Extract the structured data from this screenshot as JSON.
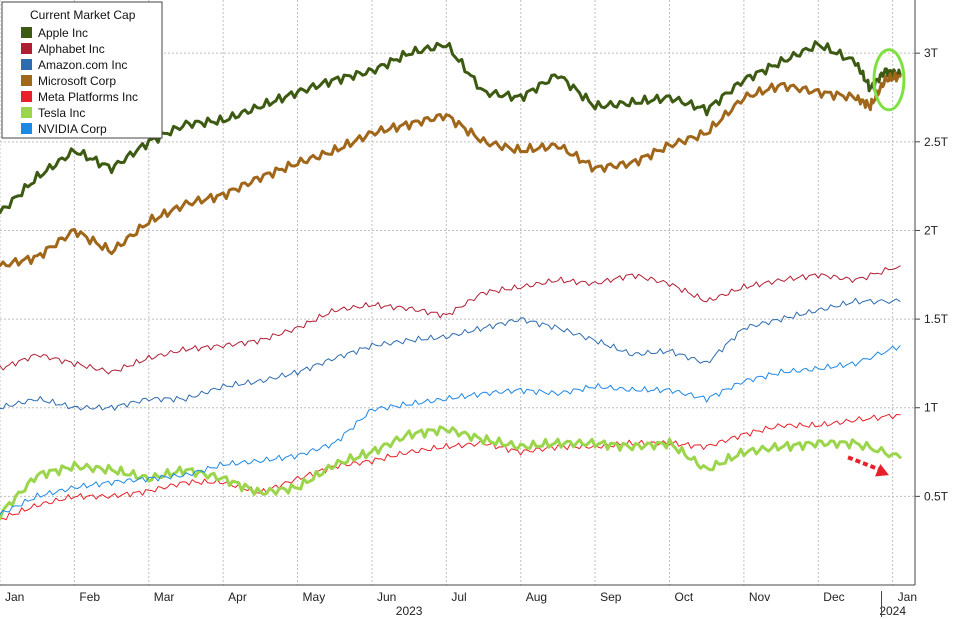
{
  "chart_data": {
    "type": "line",
    "legend_title": "Current Market Cap",
    "legend_position": "top-left",
    "grid": true,
    "y_axis_side": "right",
    "ylim": [
      0,
      3.3
    ],
    "y_ticks": [
      {
        "value": 0.5,
        "label": "0.5T"
      },
      {
        "value": 1.0,
        "label": "1T"
      },
      {
        "value": 1.5,
        "label": "1.5T"
      },
      {
        "value": 2.0,
        "label": "2T"
      },
      {
        "value": 2.5,
        "label": "2.5T"
      },
      {
        "value": 3.0,
        "label": "3T"
      }
    ],
    "xlim": [
      0,
      12.3
    ],
    "x_ticks": [
      {
        "value": 0,
        "label": "Jan"
      },
      {
        "value": 1,
        "label": "Feb"
      },
      {
        "value": 2,
        "label": "Mar"
      },
      {
        "value": 3,
        "label": "Apr"
      },
      {
        "value": 4,
        "label": "May"
      },
      {
        "value": 5,
        "label": "Jun"
      },
      {
        "value": 6,
        "label": "Jul"
      },
      {
        "value": 7,
        "label": "Aug"
      },
      {
        "value": 8,
        "label": "Sep"
      },
      {
        "value": 9,
        "label": "Oct"
      },
      {
        "value": 10,
        "label": "Nov"
      },
      {
        "value": 11,
        "label": "Dec"
      },
      {
        "value": 12,
        "label": "Jan"
      }
    ],
    "x_unit": "months since start of 2023",
    "year_labels": [
      {
        "value": 5.5,
        "label": "2023"
      },
      {
        "value": 12.0,
        "label": "2024"
      }
    ],
    "annotations": [
      {
        "type": "ellipse",
        "around_series": "Microsoft Corp",
        "x": 11.95,
        "y": 2.85,
        "color": "#7FE041"
      },
      {
        "type": "arrow",
        "near_series": "Tesla Inc",
        "from": [
          11.4,
          0.72
        ],
        "to": [
          11.95,
          0.62
        ],
        "color": "#E8202A"
      }
    ],
    "series": [
      {
        "name": "Apple Inc",
        "color": "#3D5A12",
        "width": 3,
        "x": [
          0,
          0.5,
          1,
          1.5,
          2,
          2.5,
          3,
          3.5,
          4,
          4.5,
          5,
          5.5,
          6,
          6.5,
          7,
          7.5,
          8,
          8.5,
          9,
          9.5,
          10,
          10.5,
          11,
          11.5,
          11.7,
          11.9,
          12.1
        ],
        "y": [
          2.1,
          2.3,
          2.45,
          2.35,
          2.5,
          2.6,
          2.62,
          2.7,
          2.78,
          2.85,
          2.9,
          3.0,
          3.05,
          2.78,
          2.75,
          2.88,
          2.7,
          2.72,
          2.75,
          2.68,
          2.85,
          2.95,
          3.05,
          2.95,
          2.8,
          2.9,
          2.88
        ]
      },
      {
        "name": "Alphabet Inc",
        "color": "#B01E34",
        "width": 1,
        "x": [
          0,
          0.5,
          1,
          1.5,
          2,
          2.5,
          3,
          3.5,
          4,
          4.5,
          5,
          5.5,
          6,
          6.5,
          7,
          7.5,
          8,
          8.5,
          9,
          9.5,
          10,
          10.5,
          11,
          11.5,
          12.1
        ],
        "y": [
          1.22,
          1.3,
          1.25,
          1.2,
          1.28,
          1.33,
          1.35,
          1.38,
          1.45,
          1.55,
          1.58,
          1.56,
          1.52,
          1.65,
          1.68,
          1.72,
          1.7,
          1.75,
          1.7,
          1.6,
          1.68,
          1.72,
          1.75,
          1.72,
          1.8
        ]
      },
      {
        "name": "Amazon.com Inc",
        "color": "#2E6CB0",
        "width": 1,
        "x": [
          0,
          0.5,
          1,
          1.5,
          2,
          2.5,
          3,
          3.5,
          4,
          4.5,
          5,
          5.5,
          6,
          6.5,
          7,
          7.5,
          8,
          8.5,
          9,
          9.5,
          10,
          10.5,
          11,
          11.5,
          12.1
        ],
        "y": [
          1.0,
          1.05,
          1.0,
          1.0,
          1.05,
          1.05,
          1.12,
          1.15,
          1.2,
          1.28,
          1.35,
          1.38,
          1.4,
          1.45,
          1.5,
          1.45,
          1.38,
          1.3,
          1.32,
          1.25,
          1.45,
          1.5,
          1.55,
          1.6,
          1.6
        ]
      },
      {
        "name": "Microsoft Corp",
        "color": "#A0671B",
        "width": 3,
        "x": [
          0,
          0.5,
          1,
          1.5,
          2,
          2.5,
          3,
          3.5,
          4,
          4.5,
          5,
          5.5,
          6,
          6.5,
          7,
          7.5,
          8,
          8.5,
          9,
          9.5,
          10,
          10.5,
          11,
          11.5,
          11.7,
          11.9,
          12.1
        ],
        "y": [
          1.8,
          1.85,
          2.0,
          1.88,
          2.05,
          2.15,
          2.2,
          2.3,
          2.38,
          2.45,
          2.55,
          2.6,
          2.65,
          2.5,
          2.45,
          2.48,
          2.35,
          2.38,
          2.48,
          2.55,
          2.75,
          2.82,
          2.78,
          2.75,
          2.7,
          2.85,
          2.87
        ]
      },
      {
        "name": "Meta Platforms Inc",
        "color": "#E8202A",
        "width": 1,
        "x": [
          0,
          0.5,
          1,
          1.5,
          2,
          2.5,
          3,
          3.5,
          4,
          4.5,
          5,
          5.5,
          6,
          6.5,
          7,
          7.5,
          8,
          8.5,
          9,
          9.5,
          10,
          10.5,
          11,
          11.5,
          12.1
        ],
        "y": [
          0.37,
          0.45,
          0.5,
          0.5,
          0.53,
          0.58,
          0.58,
          0.52,
          0.6,
          0.67,
          0.7,
          0.75,
          0.78,
          0.8,
          0.75,
          0.78,
          0.78,
          0.8,
          0.8,
          0.78,
          0.85,
          0.9,
          0.9,
          0.93,
          0.96
        ]
      },
      {
        "name": "Tesla Inc",
        "color": "#9BD54B",
        "width": 3,
        "x": [
          0,
          0.5,
          1,
          1.5,
          2,
          2.5,
          3,
          3.5,
          4,
          4.5,
          5,
          5.5,
          6,
          6.5,
          7,
          7.5,
          8,
          8.5,
          9,
          9.5,
          10,
          10.5,
          11,
          11.5,
          12.1
        ],
        "y": [
          0.4,
          0.62,
          0.67,
          0.65,
          0.6,
          0.65,
          0.6,
          0.52,
          0.55,
          0.68,
          0.75,
          0.85,
          0.88,
          0.82,
          0.78,
          0.8,
          0.8,
          0.78,
          0.8,
          0.65,
          0.75,
          0.78,
          0.8,
          0.8,
          0.72
        ]
      },
      {
        "name": "NVIDIA Corp",
        "color": "#1E88E5",
        "width": 1,
        "x": [
          0,
          0.5,
          1,
          1.5,
          2,
          2.5,
          3,
          3.5,
          4,
          4.5,
          5,
          5.5,
          6,
          6.5,
          7,
          7.5,
          8,
          8.5,
          9,
          9.5,
          10,
          10.5,
          11,
          11.5,
          12.1
        ],
        "y": [
          0.4,
          0.5,
          0.55,
          0.58,
          0.6,
          0.62,
          0.68,
          0.7,
          0.73,
          0.8,
          0.99,
          1.02,
          1.05,
          1.08,
          1.1,
          1.08,
          1.12,
          1.1,
          1.1,
          1.05,
          1.15,
          1.2,
          1.22,
          1.25,
          1.35
        ]
      }
    ]
  }
}
